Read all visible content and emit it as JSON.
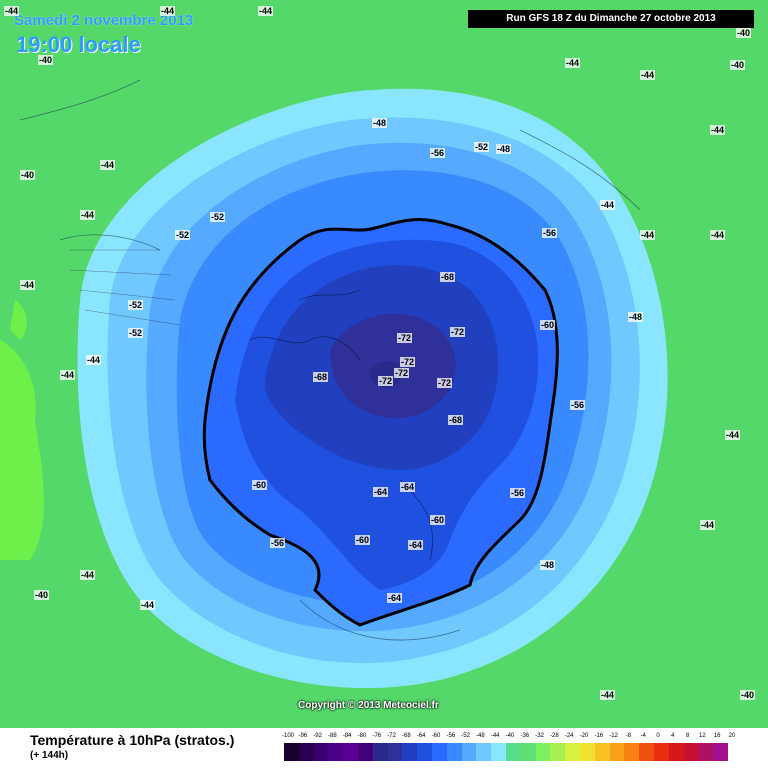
{
  "header": {
    "date": "Samedi 2 novembre 2013",
    "local_time": "19:00 locale",
    "run": "Run GFS 18 Z du Dimanche 27 octobre 2013"
  },
  "footer": {
    "title": "Température à 10hPa (stratos.)",
    "lead": "(+ 144h)",
    "copyright": "Copyright © 2013 Meteociel.fr"
  },
  "legend": {
    "ticks": [
      "-100",
      "-96",
      "-92",
      "-88",
      "-84",
      "-80",
      "-76",
      "-72",
      "-68",
      "-64",
      "-60",
      "-56",
      "-52",
      "-48",
      "-44",
      "-40",
      "-36",
      "-32",
      "-28",
      "-24",
      "-20",
      "-16",
      "-12",
      "-8",
      "-4",
      "0",
      "4",
      "8",
      "12",
      "16",
      "20"
    ],
    "colors": [
      "#1a0030",
      "#2a0050",
      "#3a0070",
      "#4b0088",
      "#5a0099",
      "#440077",
      "#2a2a8a",
      "#30309a",
      "#2040c0",
      "#2050e0",
      "#2a6aff",
      "#3a8aff",
      "#55aaff",
      "#70c8ff",
      "#8ae6ff",
      "#55dd88",
      "#60e070",
      "#7ef060",
      "#a8f050",
      "#d8f040",
      "#f0e030",
      "#f8c020",
      "#f8a018",
      "#f88010",
      "#f05010",
      "#e83010",
      "#d81818",
      "#c81030",
      "#b01060",
      "#a01090"
    ]
  },
  "contours": {
    "labels": [
      {
        "text": "-44"
      },
      {
        "text": "-40"
      },
      {
        "text": "-44"
      },
      {
        "text": "-44"
      },
      {
        "text": "-40"
      },
      {
        "text": "-44"
      },
      {
        "text": "-48"
      },
      {
        "text": "-44"
      },
      {
        "text": "-44"
      },
      {
        "text": "-44"
      },
      {
        "text": "-44"
      },
      {
        "text": "-44"
      },
      {
        "text": "-44"
      },
      {
        "text": "-48"
      },
      {
        "text": "-52"
      },
      {
        "text": "-52"
      },
      {
        "text": "-52"
      },
      {
        "text": "-52"
      },
      {
        "text": "-56"
      },
      {
        "text": "-56"
      },
      {
        "text": "-56"
      },
      {
        "text": "-60"
      },
      {
        "text": "-60"
      },
      {
        "text": "-60"
      },
      {
        "text": "-64"
      },
      {
        "text": "-64"
      },
      {
        "text": "-64"
      },
      {
        "text": "-68"
      },
      {
        "text": "-68"
      },
      {
        "text": "-68"
      },
      {
        "text": "-72"
      },
      {
        "text": "-72"
      },
      {
        "text": "-72"
      },
      {
        "text": "-72"
      },
      {
        "text": "-72"
      },
      {
        "text": "-72"
      },
      {
        "text": "-40"
      },
      {
        "text": "-40"
      },
      {
        "text": "-40"
      },
      {
        "text": "-44"
      },
      {
        "text": "-44"
      },
      {
        "text": "-44"
      },
      {
        "text": "-44"
      },
      {
        "text": "-48"
      },
      {
        "text": "-56"
      },
      {
        "text": "-56"
      },
      {
        "text": "-60"
      },
      {
        "text": "-64"
      },
      {
        "text": "-44"
      },
      {
        "text": "-44"
      },
      {
        "text": "-44"
      },
      {
        "text": "-44"
      },
      {
        "text": "-44"
      },
      {
        "text": "-40"
      },
      {
        "text": "-52"
      },
      {
        "text": "-48"
      }
    ]
  }
}
